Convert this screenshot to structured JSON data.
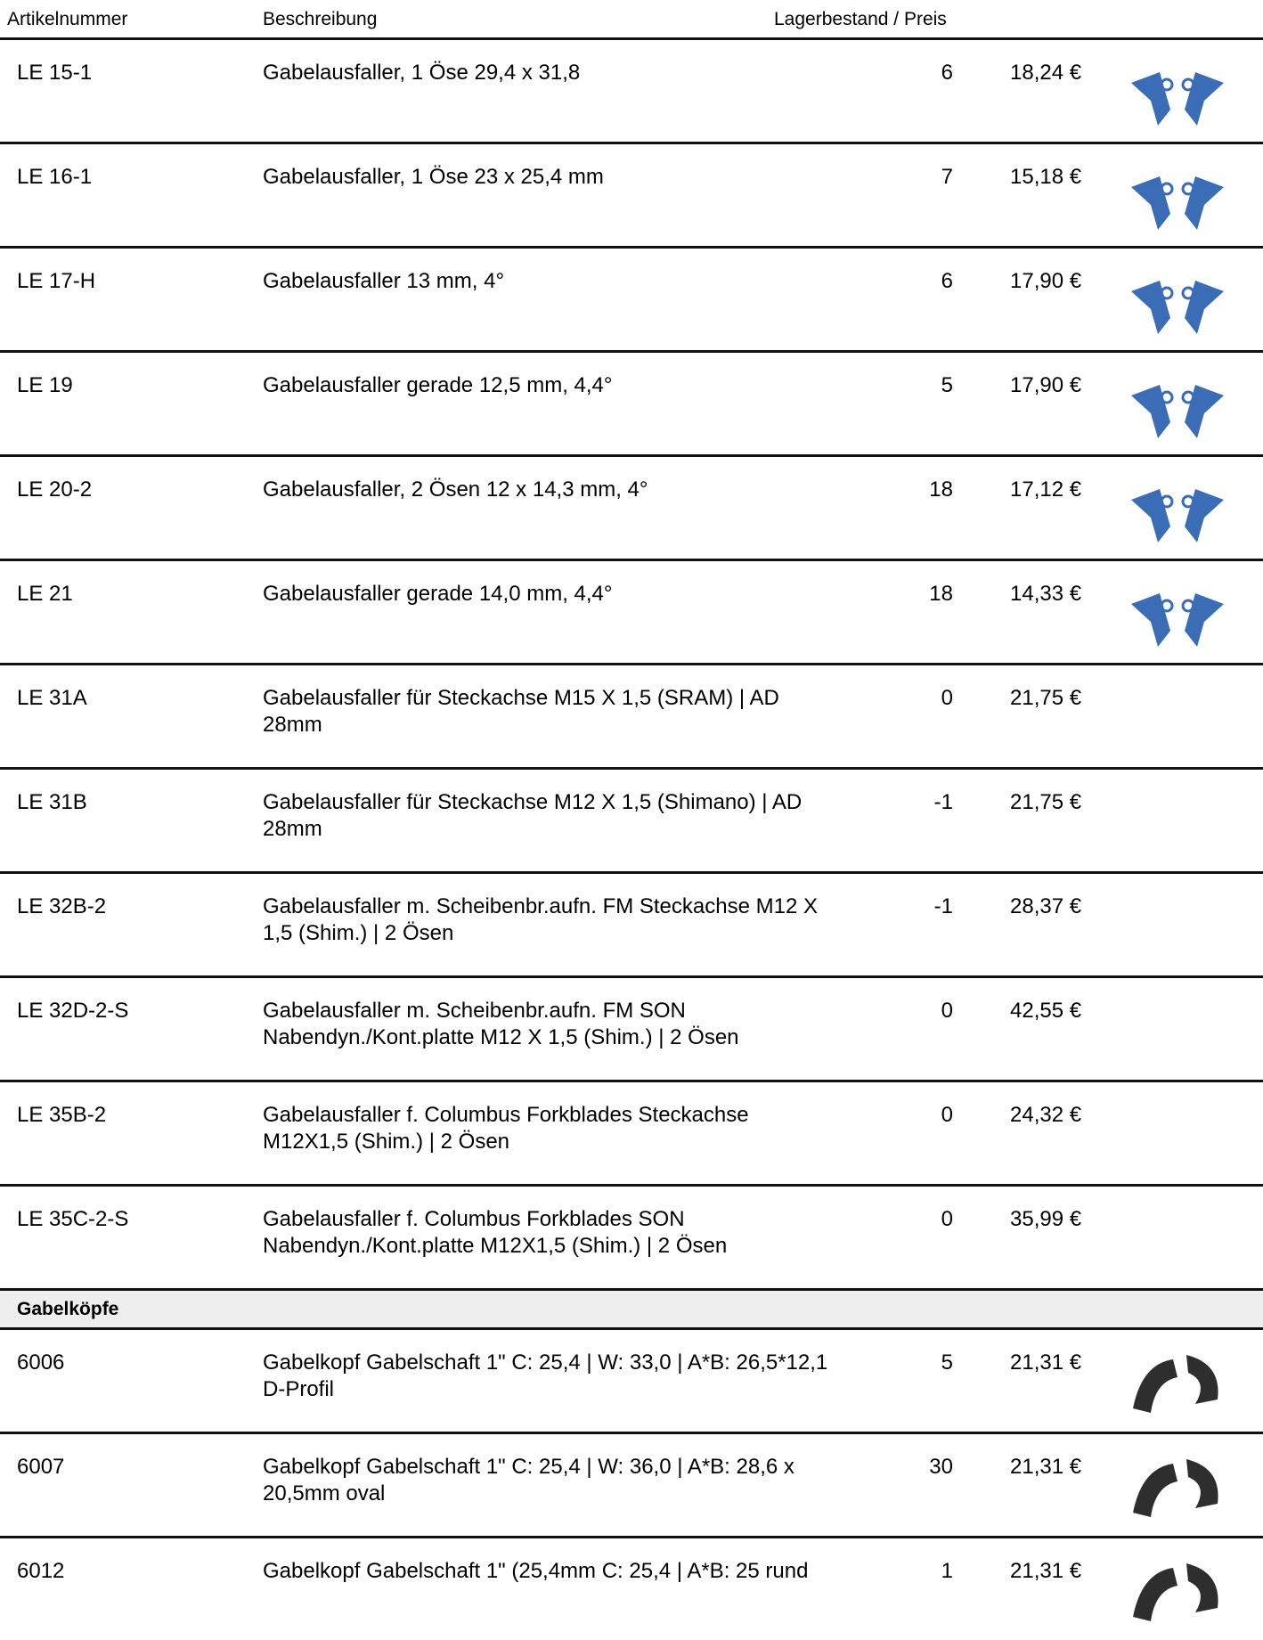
{
  "header": {
    "article": "Artikelnummer",
    "description": "Beschreibung",
    "stock_price": "Lagerbestand / Preis"
  },
  "rows": [
    [
      "LE 15-1",
      "Gabelausfaller, 1 Öse  29,4 x 31,8",
      "6",
      "18,24 €"
    ],
    [
      "LE 16-1",
      "Gabelausfaller, 1 Öse  23 x 25,4 mm",
      "7",
      "15,18 €"
    ],
    [
      "LE 17-H",
      "Gabelausfaller  13 mm, 4°",
      "6",
      "17,90 €"
    ],
    [
      "LE 19",
      "Gabelausfaller gerade  12,5 mm, 4,4°",
      "5",
      "17,90 €"
    ],
    [
      "LE 20-2",
      "Gabelausfaller, 2 Ösen  12 x 14,3 mm, 4°",
      "18",
      "17,12 €"
    ],
    [
      "LE 21",
      "Gabelausfaller gerade  14,0 mm, 4,4°",
      "18",
      "14,33 €"
    ],
    [
      "LE 31A",
      "Gabelausfaller  für Steckachse M15 X 1,5 (SRAM) | AD 28mm",
      "0",
      "21,75 €"
    ],
    [
      "LE 31B",
      "Gabelausfaller   für Steckachse M12 X 1,5 (Shimano) | AD 28mm",
      "-1",
      "21,75 €"
    ],
    [
      "LE 32B-2",
      "Gabelausfaller m. Scheibenbr.aufn. FM Steckachse M12 X 1,5 (Shim.) | 2 Ösen",
      "-1",
      "28,37 €"
    ],
    [
      "LE 32D-2-S",
      "Gabelausfaller m. Scheibenbr.aufn. FM  SON Nabendyn./Kont.platte M12 X 1,5 (Shim.) | 2 Ösen",
      "0",
      "42,55 €"
    ],
    [
      "LE 35B-2",
      "Gabelausfaller f. Columbus Forkblades Steckachse M12X1,5 (Shim.) | 2 Ösen",
      "0",
      "24,32 €"
    ],
    [
      "LE 35C-2-S",
      "Gabelausfaller f. Columbus Forkblades  SON Nabendyn./Kont.platte M12X1,5 (Shim.) | 2 Ösen",
      "0",
      "35,99 €"
    ]
  ],
  "section": {
    "title": "Gabelköpfe",
    "rows": [
      [
        "6006",
        "Gabelkopf  Gabelschaft 1\" C: 25,4 | W: 33,0 | A*B: 26,5*12,1 D-Profil",
        "5",
        "21,31 €"
      ],
      [
        "6007",
        "Gabelkopf  Gabelschaft 1\" C: 25,4 | W: 36,0 | A*B: 28,6 x 20,5mm oval",
        "30",
        "21,31 €"
      ],
      [
        "6012",
        "Gabelkopf  Gabelschaft 1\" (25,4mm C: 25,4 | A*B: 25 rund",
        "1",
        "21,31 €"
      ]
    ]
  }
}
